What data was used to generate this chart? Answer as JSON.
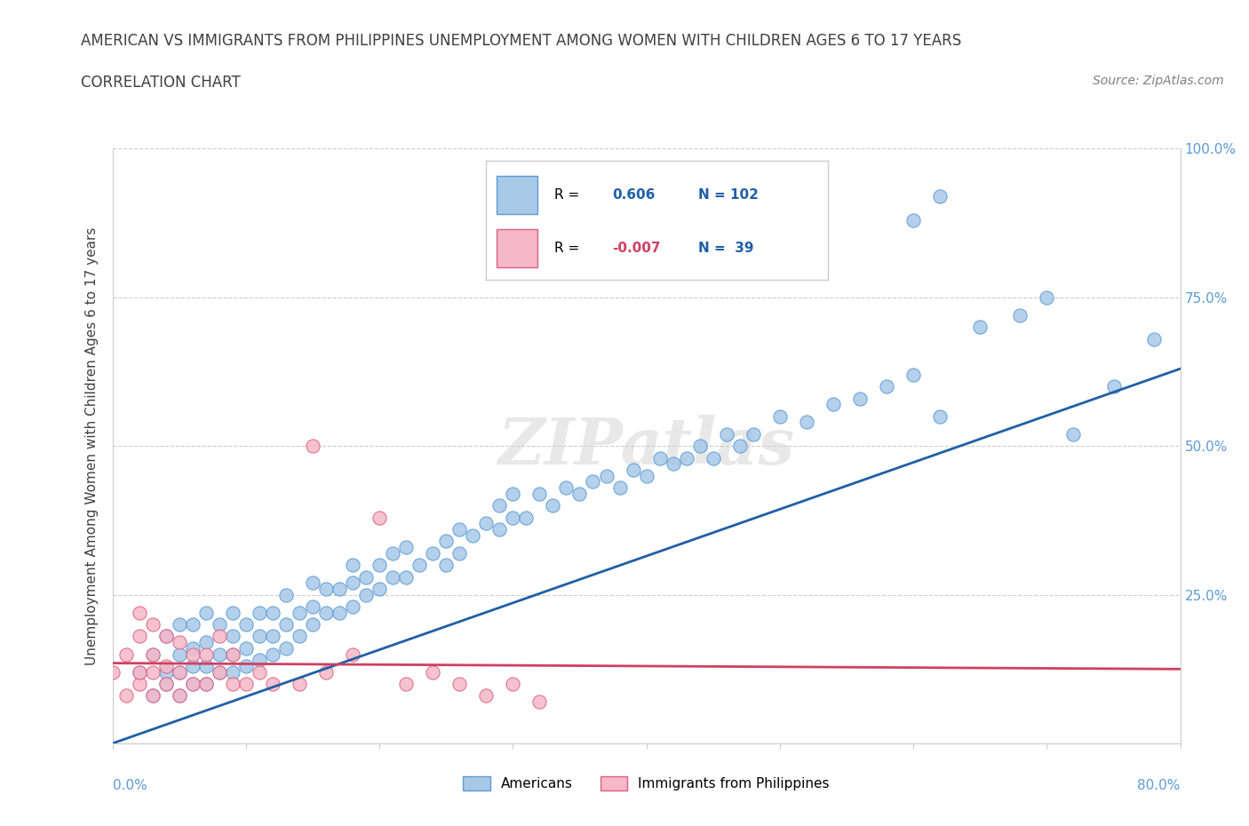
{
  "title_line1": "AMERICAN VS IMMIGRANTS FROM PHILIPPINES UNEMPLOYMENT AMONG WOMEN WITH CHILDREN AGES 6 TO 17 YEARS",
  "title_line2": "CORRELATION CHART",
  "source_text": "Source: ZipAtlas.com",
  "ylabel": "Unemployment Among Women with Children Ages 6 to 17 years",
  "xlim": [
    0.0,
    0.8
  ],
  "ylim": [
    0.0,
    1.0
  ],
  "xticks": [
    0.0,
    0.1,
    0.2,
    0.3,
    0.4,
    0.5,
    0.6,
    0.7,
    0.8
  ],
  "yticks": [
    0.0,
    0.25,
    0.5,
    0.75,
    1.0
  ],
  "blue_color": "#a8c8e8",
  "blue_edge_color": "#5b9bd5",
  "pink_color": "#f4b8c8",
  "pink_edge_color": "#e06080",
  "blue_line_color": "#1f5fa6",
  "pink_line_color": "#d04060",
  "R_blue": 0.606,
  "N_blue": 102,
  "R_pink": -0.007,
  "N_pink": 39,
  "watermark": "ZIPatlas",
  "legend_blue_label": "Americans",
  "legend_pink_label": "Immigrants from Philippines",
  "blue_scatter_x": [
    0.02,
    0.03,
    0.03,
    0.04,
    0.04,
    0.04,
    0.05,
    0.05,
    0.05,
    0.05,
    0.06,
    0.06,
    0.06,
    0.06,
    0.07,
    0.07,
    0.07,
    0.07,
    0.08,
    0.08,
    0.08,
    0.09,
    0.09,
    0.09,
    0.09,
    0.1,
    0.1,
    0.1,
    0.11,
    0.11,
    0.11,
    0.12,
    0.12,
    0.12,
    0.13,
    0.13,
    0.13,
    0.14,
    0.14,
    0.15,
    0.15,
    0.15,
    0.16,
    0.16,
    0.17,
    0.17,
    0.18,
    0.18,
    0.18,
    0.19,
    0.19,
    0.2,
    0.2,
    0.21,
    0.21,
    0.22,
    0.22,
    0.23,
    0.24,
    0.25,
    0.25,
    0.26,
    0.26,
    0.27,
    0.28,
    0.29,
    0.29,
    0.3,
    0.3,
    0.31,
    0.32,
    0.33,
    0.34,
    0.35,
    0.36,
    0.37,
    0.38,
    0.39,
    0.4,
    0.41,
    0.42,
    0.43,
    0.44,
    0.45,
    0.46,
    0.47,
    0.48,
    0.5,
    0.52,
    0.54,
    0.56,
    0.58,
    0.6,
    0.62,
    0.65,
    0.68,
    0.7,
    0.72,
    0.75,
    0.78,
    0.6,
    0.62
  ],
  "blue_scatter_y": [
    0.12,
    0.08,
    0.15,
    0.1,
    0.12,
    0.18,
    0.08,
    0.12,
    0.15,
    0.2,
    0.1,
    0.13,
    0.16,
    0.2,
    0.1,
    0.13,
    0.17,
    0.22,
    0.12,
    0.15,
    0.2,
    0.12,
    0.15,
    0.18,
    0.22,
    0.13,
    0.16,
    0.2,
    0.14,
    0.18,
    0.22,
    0.15,
    0.18,
    0.22,
    0.16,
    0.2,
    0.25,
    0.18,
    0.22,
    0.2,
    0.23,
    0.27,
    0.22,
    0.26,
    0.22,
    0.26,
    0.23,
    0.27,
    0.3,
    0.25,
    0.28,
    0.26,
    0.3,
    0.28,
    0.32,
    0.28,
    0.33,
    0.3,
    0.32,
    0.3,
    0.34,
    0.32,
    0.36,
    0.35,
    0.37,
    0.36,
    0.4,
    0.38,
    0.42,
    0.38,
    0.42,
    0.4,
    0.43,
    0.42,
    0.44,
    0.45,
    0.43,
    0.46,
    0.45,
    0.48,
    0.47,
    0.48,
    0.5,
    0.48,
    0.52,
    0.5,
    0.52,
    0.55,
    0.54,
    0.57,
    0.58,
    0.6,
    0.62,
    0.55,
    0.7,
    0.72,
    0.75,
    0.52,
    0.6,
    0.68,
    0.88,
    0.92
  ],
  "pink_scatter_x": [
    0.0,
    0.01,
    0.01,
    0.02,
    0.02,
    0.02,
    0.02,
    0.03,
    0.03,
    0.03,
    0.03,
    0.04,
    0.04,
    0.04,
    0.05,
    0.05,
    0.05,
    0.06,
    0.06,
    0.07,
    0.07,
    0.08,
    0.08,
    0.09,
    0.09,
    0.1,
    0.11,
    0.12,
    0.14,
    0.15,
    0.16,
    0.18,
    0.2,
    0.22,
    0.24,
    0.26,
    0.28,
    0.3,
    0.32
  ],
  "pink_scatter_y": [
    0.12,
    0.08,
    0.15,
    0.1,
    0.12,
    0.18,
    0.22,
    0.08,
    0.12,
    0.15,
    0.2,
    0.1,
    0.13,
    0.18,
    0.08,
    0.12,
    0.17,
    0.1,
    0.15,
    0.1,
    0.15,
    0.12,
    0.18,
    0.1,
    0.15,
    0.1,
    0.12,
    0.1,
    0.1,
    0.5,
    0.12,
    0.15,
    0.38,
    0.1,
    0.12,
    0.1,
    0.08,
    0.1,
    0.07
  ],
  "blue_line_x0": 0.0,
  "blue_line_y0": 0.0,
  "blue_line_x1": 0.8,
  "blue_line_y1": 0.63,
  "pink_line_x0": 0.0,
  "pink_line_x1": 0.8,
  "pink_line_y0": 0.135,
  "pink_line_y1": 0.125,
  "grid_color": "#cccccc",
  "background_color": "#ffffff",
  "title_color": "#404040",
  "axis_label_color": "#404040",
  "tick_label_color": "#5b9bd5",
  "right_tick_color": "#5b9bd5"
}
